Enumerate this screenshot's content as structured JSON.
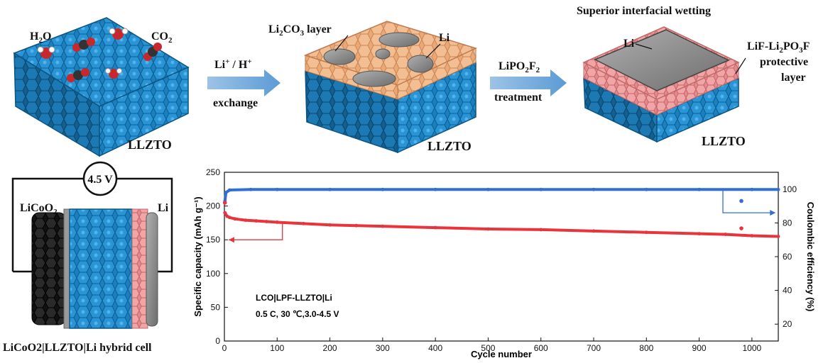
{
  "figure": {
    "panel1": {
      "h2o_prefix": "H",
      "h2o_sub": "2",
      "h2o_suffix": "O",
      "co2_prefix": "CO",
      "co2_sub": "2",
      "substrate": "LLZTO"
    },
    "arrow1": {
      "top_a": "Li",
      "top_a_sup": "+",
      "top_mid": " / H",
      "top_b_sup": "+",
      "bottom": "exchange"
    },
    "panel2": {
      "layer_prefix": "Li",
      "layer_sub1": "2",
      "layer_mid": "CO",
      "layer_sub2": "3",
      "layer_suffix": " layer",
      "li": "Li",
      "substrate": "LLZTO"
    },
    "arrow2": {
      "top_prefix": "LiPO",
      "top_sub": "2",
      "top_suffix": "F",
      "top_sub2": "2",
      "bottom": "treatment"
    },
    "panel3": {
      "title": "Superior interfacial wetting",
      "li": "Li",
      "prot_l1_a": "LiF-Li",
      "prot_l1_sub1": "2",
      "prot_l1_b": "PO",
      "prot_l1_sub2": "3",
      "prot_l1_c": "F",
      "prot_l2": "protective",
      "prot_l3": "layer",
      "substrate": "LLZTO"
    },
    "cell": {
      "voltage": "4.5 V",
      "cathode_prefix": "LiCoO",
      "cathode_sub": "2",
      "anode": "Li",
      "caption": "LiCoO2|LLZTO|Li hybrid cell"
    }
  },
  "chart_data": {
    "type": "scatter",
    "title": "",
    "xlabel": "Cycle number",
    "ylabel_left": "Specific capacity (mAh g⁻¹)",
    "ylabel_right": "Coulombic efficiency (%)",
    "xlim": [
      0,
      1050
    ],
    "ylim_left": [
      0,
      250
    ],
    "ylim_right": [
      10,
      110
    ],
    "x_ticks": [
      0,
      100,
      200,
      300,
      400,
      500,
      600,
      700,
      800,
      900,
      1000
    ],
    "y_left_ticks": [
      0,
      50,
      100,
      150,
      200,
      250
    ],
    "y_right_ticks": [
      20,
      40,
      60,
      80,
      100
    ],
    "annotation_line1": "LCO|LPF-LLZTO|Li",
    "annotation_line2": "0.5 C, 30 ℃,3.0-4.5 V",
    "series": [
      {
        "axis": "left",
        "color": "#e8343a",
        "x": [
          1,
          5,
          10,
          20,
          40,
          60,
          80,
          100,
          150,
          200,
          250,
          300,
          400,
          500,
          600,
          700,
          800,
          900,
          950,
          1000,
          1050
        ],
        "y": [
          190,
          185,
          183,
          181,
          179,
          178,
          177,
          176,
          174,
          172,
          171,
          170,
          168,
          166,
          165,
          163,
          161,
          159,
          158,
          156,
          155
        ]
      },
      {
        "axis": "right",
        "color": "#2f6fd6",
        "x": [
          1,
          3,
          10,
          50,
          100,
          200,
          300,
          400,
          500,
          600,
          700,
          800,
          900,
          1000,
          1050
        ],
        "y": [
          93,
          98,
          99.5,
          99.8,
          99.8,
          99.8,
          99.8,
          99.8,
          99.8,
          99.8,
          99.8,
          99.8,
          99.8,
          99.8,
          99.8
        ]
      }
    ],
    "outliers": [
      {
        "axis": "left",
        "x": 980,
        "y": 167,
        "color": "#e8343a"
      },
      {
        "axis": "right",
        "x": 980,
        "y": 93,
        "color": "#2f6fd6"
      },
      {
        "axis": "left",
        "x": 1,
        "y": 205,
        "color": "#e8343a"
      }
    ]
  }
}
